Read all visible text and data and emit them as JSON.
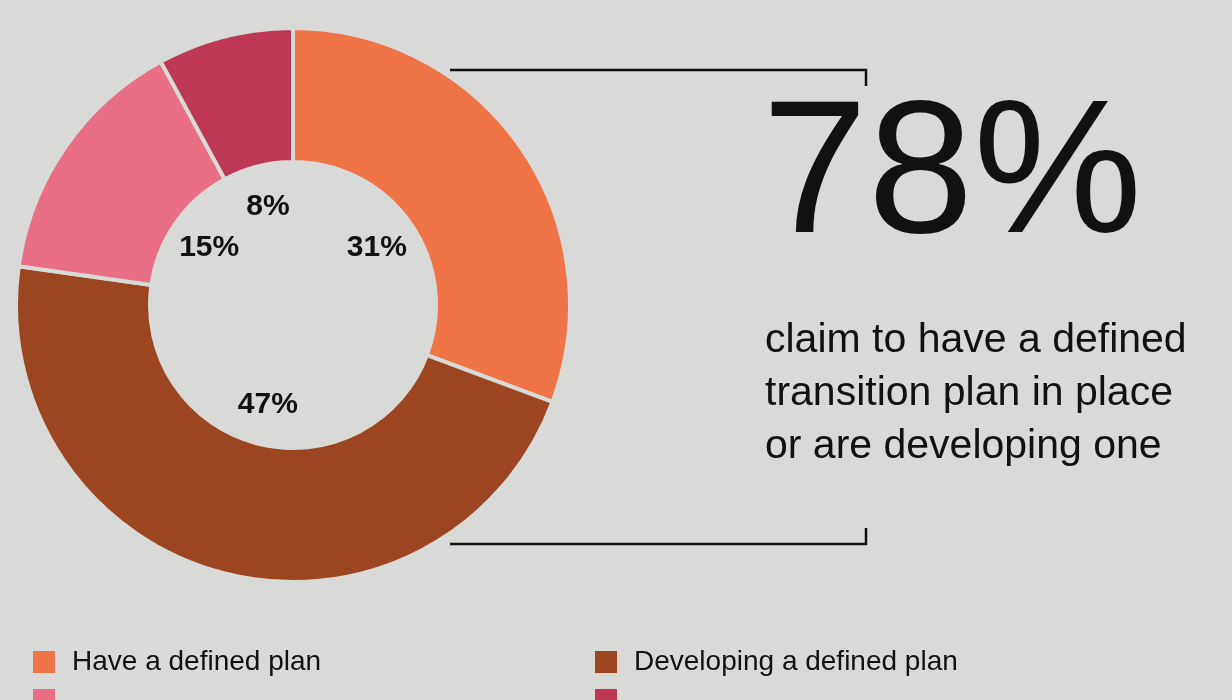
{
  "chart_data": {
    "type": "donut",
    "categories": [
      "Have a defined plan",
      "Developing a defined plan",
      null,
      null
    ],
    "values": [
      31,
      47,
      15,
      8
    ],
    "colors": [
      "#ef7448",
      "#9b4521",
      "#e86f85",
      "#bd3855"
    ],
    "value_labels": [
      "31%",
      "47%",
      "15%",
      "8%"
    ],
    "legend": "bottom",
    "annotations": [
      "78%",
      "claim to have a defined transition plan in place or are developing one"
    ]
  }
}
